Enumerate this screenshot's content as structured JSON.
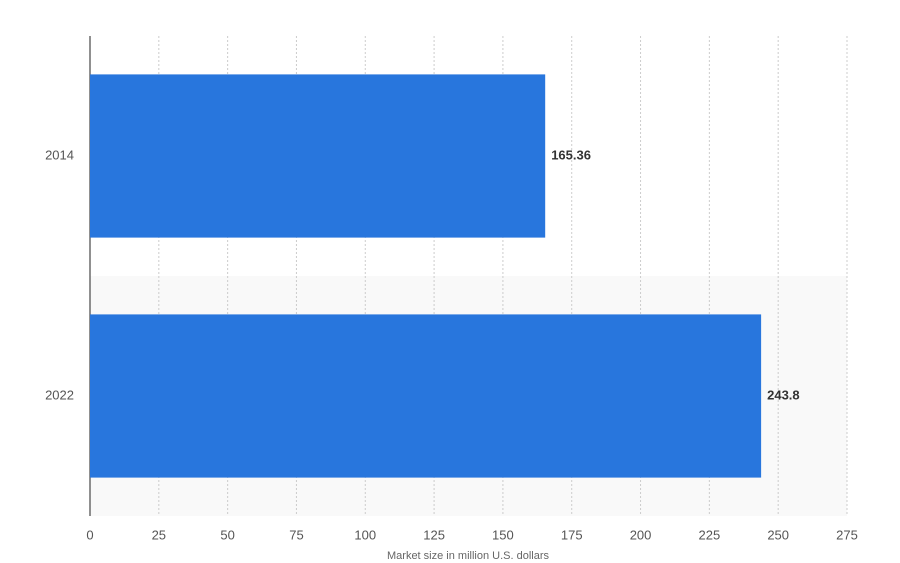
{
  "chart_data": {
    "type": "bar",
    "orientation": "horizontal",
    "x_label": "Market size in million U.S. dollars",
    "categories": [
      "2014",
      "2022"
    ],
    "values": [
      165.36,
      243.8
    ],
    "color": "#2876dd",
    "xlim": [
      0,
      275
    ],
    "xticks": [
      0,
      25,
      50,
      75,
      100,
      125,
      150,
      175,
      200,
      225,
      250,
      275
    ],
    "grid": true
  }
}
